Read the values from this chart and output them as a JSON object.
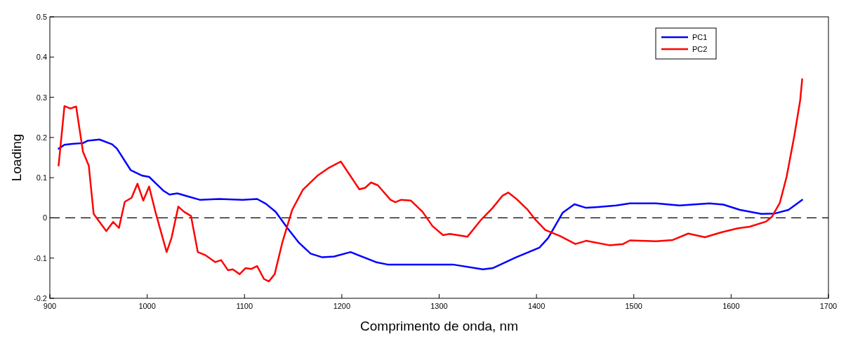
{
  "chart_data": {
    "type": "line",
    "xlabel": "Comprimento de onda, nm",
    "ylabel": "Loading",
    "xlim": [
      900,
      1700
    ],
    "xticks": [
      900,
      1000,
      1100,
      1200,
      1300,
      1400,
      1500,
      1600,
      1700
    ],
    "ylim": [
      -0.2,
      0.5
    ],
    "yticks": [
      -0.2,
      -0.1,
      0,
      0.1,
      0.2,
      0.3,
      0.4,
      0.5
    ],
    "grid": false,
    "legend": "top right",
    "marker": "none",
    "line_style": "solid",
    "ref_lines": [
      {
        "axis": "y",
        "value": 0,
        "color": "#000000",
        "line_style": "dashed"
      }
    ],
    "series": [
      {
        "name": "PC1",
        "color": "#0000ff",
        "x": [
          909,
          915,
          923,
          934,
          939,
          951,
          964,
          969,
          983,
          995,
          1002,
          1017,
          1023,
          1031,
          1041,
          1054,
          1074,
          1098,
          1113,
          1122,
          1132,
          1144,
          1156,
          1168,
          1180,
          1192,
          1209,
          1235,
          1247,
          1314,
          1345,
          1355,
          1379,
          1403,
          1412,
          1427,
          1439,
          1451,
          1463,
          1482,
          1496,
          1523,
          1547,
          1578,
          1592,
          1609,
          1631,
          1645,
          1659,
          1673
        ],
        "values": [
          0.172,
          0.182,
          0.184,
          0.186,
          0.192,
          0.195,
          0.183,
          0.172,
          0.119,
          0.105,
          0.102,
          0.067,
          0.058,
          0.061,
          0.054,
          0.045,
          0.047,
          0.045,
          0.047,
          0.035,
          0.015,
          -0.025,
          -0.062,
          -0.089,
          -0.098,
          -0.096,
          -0.085,
          -0.11,
          -0.116,
          -0.116,
          -0.128,
          -0.125,
          -0.098,
          -0.074,
          -0.05,
          0.013,
          0.034,
          0.025,
          0.027,
          0.031,
          0.036,
          0.036,
          0.031,
          0.036,
          0.033,
          0.02,
          0.01,
          0.011,
          0.02,
          0.045
        ]
      },
      {
        "name": "PC2",
        "color": "#ff0000",
        "x": [
          909,
          915,
          921,
          927,
          934,
          940,
          945,
          958,
          965,
          971,
          977,
          984,
          990,
          996,
          1002,
          1009,
          1020,
          1025,
          1032,
          1038,
          1045,
          1052,
          1060,
          1070,
          1076,
          1083,
          1088,
          1095,
          1101,
          1107,
          1113,
          1120,
          1125,
          1131,
          1139,
          1149,
          1160,
          1175,
          1187,
          1199,
          1218,
          1224,
          1230,
          1237,
          1250,
          1255,
          1261,
          1271,
          1283,
          1293,
          1304,
          1311,
          1329,
          1343,
          1355,
          1365,
          1371,
          1379,
          1391,
          1398,
          1409,
          1424,
          1440,
          1451,
          1475,
          1489,
          1496,
          1523,
          1540,
          1556,
          1573,
          1590,
          1607,
          1619,
          1636,
          1642,
          1650,
          1657,
          1665,
          1671,
          1673
        ],
        "values": [
          0.13,
          0.278,
          0.272,
          0.277,
          0.165,
          0.13,
          0.01,
          -0.033,
          -0.01,
          -0.025,
          0.04,
          0.05,
          0.085,
          0.043,
          0.078,
          0.01,
          -0.085,
          -0.05,
          0.028,
          0.015,
          0.005,
          -0.085,
          -0.093,
          -0.11,
          -0.105,
          -0.13,
          -0.128,
          -0.14,
          -0.125,
          -0.127,
          -0.12,
          -0.152,
          -0.158,
          -0.14,
          -0.06,
          0.02,
          0.07,
          0.105,
          0.125,
          0.14,
          0.071,
          0.075,
          0.088,
          0.081,
          0.045,
          0.039,
          0.045,
          0.043,
          0.015,
          -0.02,
          -0.043,
          -0.04,
          -0.047,
          -0.005,
          0.025,
          0.055,
          0.063,
          0.048,
          0.02,
          -0.002,
          -0.03,
          -0.045,
          -0.065,
          -0.057,
          -0.068,
          -0.065,
          -0.056,
          -0.058,
          -0.055,
          -0.039,
          -0.048,
          -0.036,
          -0.026,
          -0.022,
          -0.009,
          0.003,
          0.037,
          0.102,
          0.205,
          0.293,
          0.345
        ]
      }
    ]
  }
}
